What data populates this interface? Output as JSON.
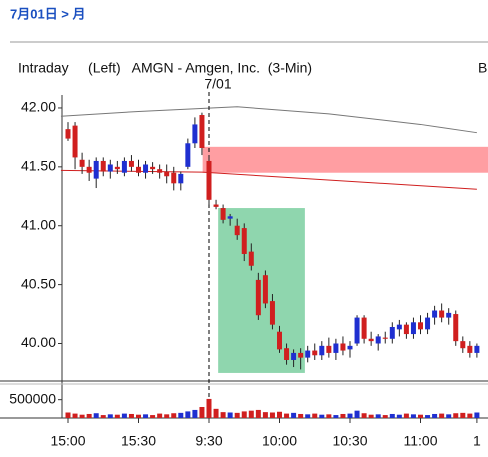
{
  "header": "7月01日 > 月",
  "chart_data": {
    "type": "candlestick",
    "title": "Intraday     (Left)   AMGN - Amgen, Inc.  (3-Min)",
    "title_right": "B",
    "annotation": {
      "text": "7/01",
      "x": 20
    },
    "categories": [
      "15:00",
      null,
      null,
      null,
      null,
      null,
      null,
      null,
      null,
      null,
      "15:30",
      null,
      null,
      null,
      null,
      null,
      null,
      null,
      null,
      null,
      "9:30",
      null,
      null,
      null,
      null,
      null,
      null,
      null,
      null,
      null,
      "10:00",
      null,
      null,
      null,
      null,
      null,
      null,
      null,
      null,
      null,
      "10:30",
      null,
      null,
      null,
      null,
      null,
      null,
      null,
      null,
      null,
      "11:00",
      null,
      null,
      null,
      null,
      null,
      null,
      null,
      "1"
    ],
    "ohlc": [
      [
        41.82,
        41.88,
        41.72,
        41.74
      ],
      [
        41.85,
        41.88,
        41.48,
        41.58
      ],
      [
        41.56,
        41.62,
        41.44,
        41.5
      ],
      [
        41.5,
        41.56,
        41.38,
        41.45
      ],
      [
        41.4,
        41.58,
        41.32,
        41.55
      ],
      [
        41.55,
        41.58,
        41.42,
        41.46
      ],
      [
        41.46,
        41.56,
        41.4,
        41.52
      ],
      [
        41.5,
        41.55,
        41.44,
        41.48
      ],
      [
        41.45,
        41.58,
        41.42,
        41.55
      ],
      [
        41.55,
        41.6,
        41.46,
        41.5
      ],
      [
        41.5,
        41.56,
        41.42,
        41.45
      ],
      [
        41.45,
        41.55,
        41.4,
        41.52
      ],
      [
        41.5,
        41.54,
        41.44,
        41.48
      ],
      [
        41.48,
        41.52,
        41.4,
        41.45
      ],
      [
        41.46,
        41.52,
        41.36,
        41.42
      ],
      [
        41.45,
        41.5,
        41.3,
        41.36
      ],
      [
        41.36,
        41.46,
        41.3,
        41.44
      ],
      [
        41.5,
        41.74,
        41.48,
        41.7
      ],
      [
        41.7,
        41.92,
        41.66,
        41.86
      ],
      [
        41.94,
        41.96,
        41.6,
        41.66
      ],
      [
        41.55,
        41.6,
        41.18,
        41.22
      ],
      [
        41.18,
        41.22,
        41.14,
        41.16
      ],
      [
        41.15,
        41.18,
        41.02,
        41.05
      ],
      [
        41.06,
        41.1,
        41.0,
        41.08
      ],
      [
        41.0,
        41.06,
        40.88,
        40.92
      ],
      [
        40.98,
        41.02,
        40.7,
        40.76
      ],
      [
        40.78,
        40.85,
        40.62,
        40.66
      ],
      [
        40.54,
        40.6,
        40.2,
        40.24
      ],
      [
        40.58,
        40.62,
        40.3,
        40.34
      ],
      [
        40.36,
        40.42,
        40.12,
        40.16
      ],
      [
        40.1,
        40.15,
        39.92,
        39.95
      ],
      [
        39.96,
        40.0,
        39.82,
        39.86
      ],
      [
        39.86,
        39.95,
        39.8,
        39.92
      ],
      [
        39.92,
        39.96,
        39.78,
        39.88
      ],
      [
        39.88,
        39.98,
        39.84,
        39.94
      ],
      [
        39.94,
        40.0,
        39.86,
        39.9
      ],
      [
        39.9,
        40.02,
        39.86,
        39.98
      ],
      [
        39.98,
        40.05,
        39.88,
        39.92
      ],
      [
        39.92,
        40.04,
        39.86,
        40.0
      ],
      [
        40.0,
        40.06,
        39.9,
        39.94
      ],
      [
        39.95,
        40.02,
        39.88,
        39.98
      ],
      [
        40.0,
        40.24,
        39.98,
        40.22
      ],
      [
        40.22,
        40.24,
        40.0,
        40.04
      ],
      [
        40.04,
        40.1,
        39.98,
        40.02
      ],
      [
        40.0,
        40.08,
        39.94,
        40.06
      ],
      [
        40.05,
        40.1,
        40.0,
        40.04
      ],
      [
        40.04,
        40.18,
        40.0,
        40.14
      ],
      [
        40.12,
        40.2,
        40.06,
        40.16
      ],
      [
        40.16,
        40.18,
        40.04,
        40.08
      ],
      [
        40.08,
        40.22,
        40.04,
        40.18
      ],
      [
        40.18,
        40.24,
        40.08,
        40.12
      ],
      [
        40.12,
        40.26,
        40.08,
        40.22
      ],
      [
        40.22,
        40.32,
        40.16,
        40.28
      ],
      [
        40.28,
        40.34,
        40.18,
        40.22
      ],
      [
        40.22,
        40.3,
        40.16,
        40.26
      ],
      [
        40.25,
        40.28,
        39.98,
        40.02
      ],
      [
        40.02,
        40.06,
        39.92,
        39.96
      ],
      [
        39.98,
        40.02,
        39.88,
        39.92
      ],
      [
        39.92,
        40.0,
        39.88,
        39.98
      ]
    ],
    "up_color": "#1f2fd0",
    "down_color": "#d01f1f",
    "ylim": [
      39.69,
      42.11
    ],
    "yticks": [
      {
        "value": 42,
        "label": "42.00"
      },
      {
        "value": 41.5,
        "label": "41.50"
      },
      {
        "value": 41,
        "label": "41.00"
      },
      {
        "value": 40.5,
        "label": "40.50"
      },
      {
        "value": 40,
        "label": "40.00"
      }
    ],
    "volume": [
      150000,
      120000,
      90000,
      110000,
      130000,
      80000,
      100000,
      90000,
      120000,
      110000,
      90000,
      100000,
      80000,
      120000,
      100000,
      130000,
      140000,
      180000,
      220000,
      300000,
      520000,
      250000,
      160000,
      150000,
      140000,
      180000,
      200000,
      220000,
      160000,
      150000,
      170000,
      120000,
      140000,
      110000,
      100000,
      120000,
      90000,
      100000,
      80000,
      110000,
      120000,
      200000,
      130000,
      90000,
      100000,
      80000,
      110000,
      90000,
      120000,
      100000,
      90000,
      80000,
      110000,
      120000,
      100000,
      130000,
      140000,
      120000,
      150000
    ],
    "volume_ylim": [
      0,
      900000
    ],
    "volume_yticks": [
      500000
    ],
    "zones": [
      {
        "color": "#ff9ea2",
        "x": [
          19.1,
          59.6
        ],
        "y": [
          41.45,
          41.67
        ]
      },
      {
        "color": "#8fd6ae",
        "x": [
          21.3,
          33.6
        ],
        "y": [
          39.75,
          41.15
        ]
      }
    ],
    "overlays": [
      {
        "color": "#777777",
        "x": [
          -1,
          10,
          24,
          37,
          50,
          58
        ],
        "values": [
          41.93,
          41.97,
          42.01,
          41.95,
          41.86,
          41.79
        ]
      },
      {
        "color": "#d01f1f",
        "x": [
          -1,
          19,
          58
        ],
        "values": [
          41.47,
          41.455,
          41.31
        ]
      }
    ]
  }
}
